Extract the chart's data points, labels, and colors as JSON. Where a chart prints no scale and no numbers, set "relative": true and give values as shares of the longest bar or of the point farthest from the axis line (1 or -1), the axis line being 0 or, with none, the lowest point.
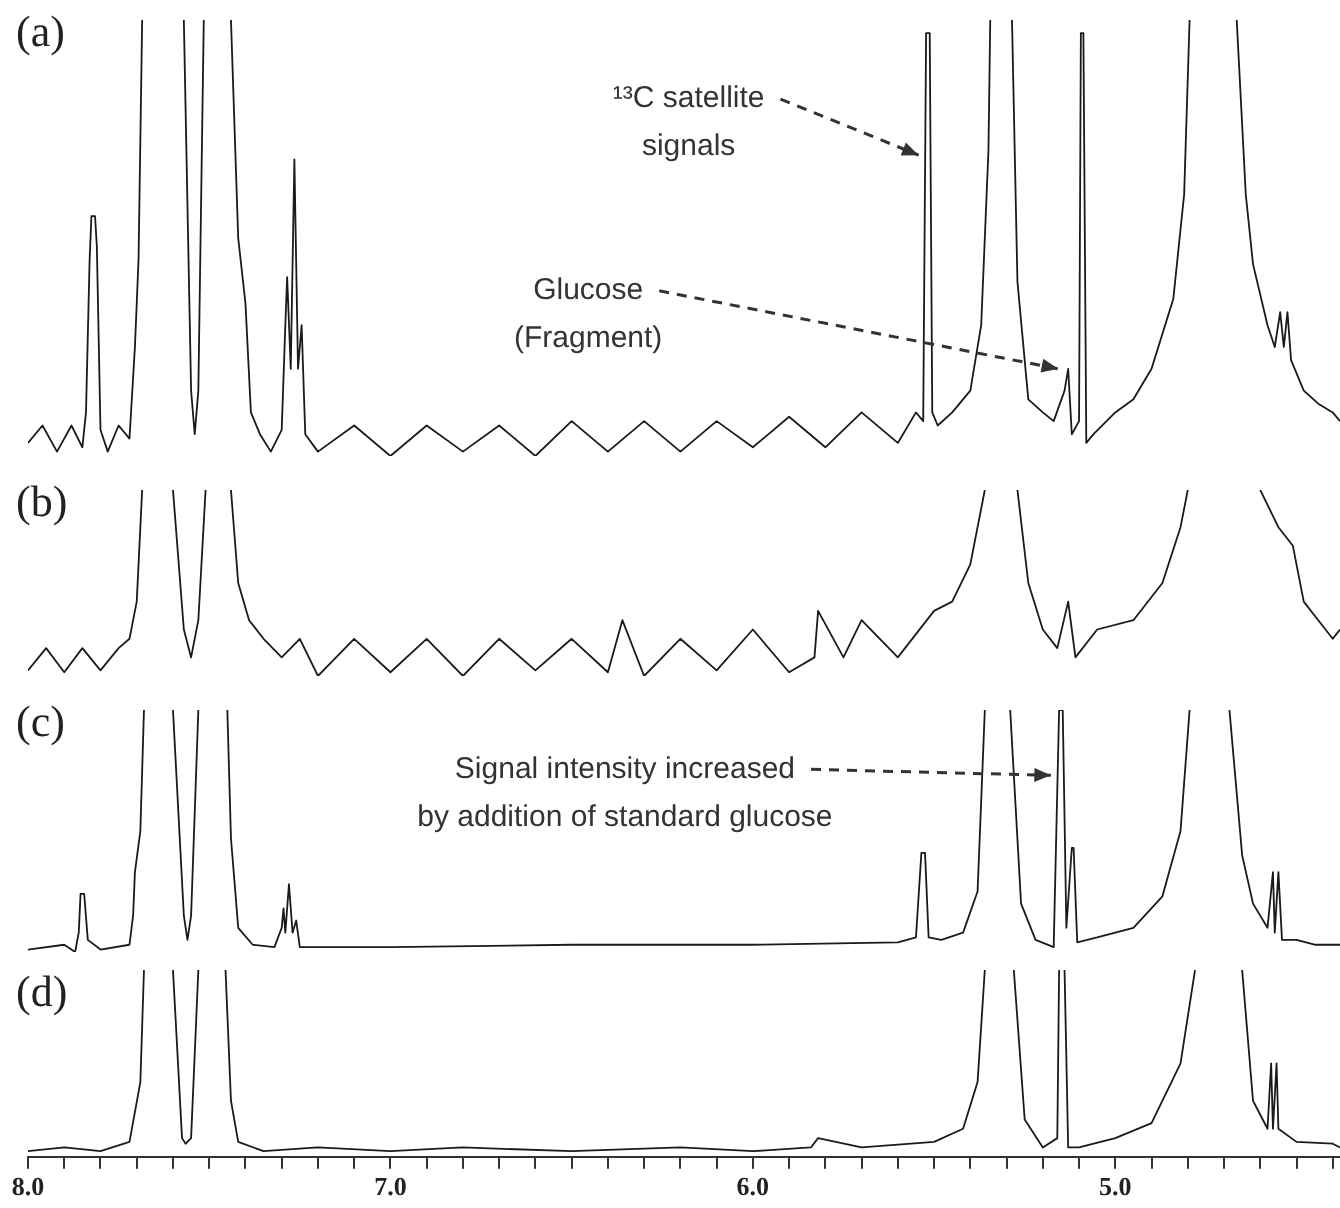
{
  "chart_data": [
    {
      "type": "line",
      "title": "(a)",
      "relative": true,
      "xlim": [
        8.0,
        4.38
      ],
      "tick_labels": false,
      "annotations": [
        {
          "text": "¹³C satellite signals",
          "x": 5.515,
          "y": 0.69
        },
        {
          "text": "Glucose (Fragment)",
          "x": 5.13,
          "y": 0.2
        }
      ],
      "series": [
        {
          "color": "#1a1a1a",
          "x": [
            8.0,
            7.96,
            7.92,
            7.88,
            7.85,
            7.84,
            7.83,
            7.825,
            7.815,
            7.81,
            7.8,
            7.78,
            7.75,
            7.72,
            7.705,
            7.695,
            7.685,
            7.63,
            7.57,
            7.55,
            7.54,
            7.53,
            7.515,
            7.48,
            7.44,
            7.42,
            7.4,
            7.385,
            7.36,
            7.33,
            7.3,
            7.29,
            7.285,
            7.275,
            7.265,
            7.255,
            7.245,
            7.235,
            7.2,
            7.1,
            7.0,
            6.9,
            6.8,
            6.7,
            6.6,
            6.5,
            6.4,
            6.3,
            6.2,
            6.1,
            6.0,
            5.9,
            5.8,
            5.7,
            5.6,
            5.55,
            5.53,
            5.522,
            5.512,
            5.505,
            5.49,
            5.45,
            5.4,
            5.37,
            5.35,
            5.345,
            5.315,
            5.285,
            5.27,
            5.24,
            5.2,
            5.17,
            5.14,
            5.13,
            5.12,
            5.1,
            5.095,
            5.088,
            5.08,
            5.06,
            5.0,
            4.95,
            4.9,
            4.84,
            4.81,
            4.795,
            4.73,
            4.665,
            4.64,
            4.62,
            4.58,
            4.56,
            4.545,
            4.535,
            4.525,
            4.515,
            4.48,
            4.44,
            4.4,
            4.38
          ],
          "values": [
            0.03,
            0.07,
            0.01,
            0.07,
            0.02,
            0.1,
            0.45,
            0.55,
            0.55,
            0.48,
            0.06,
            0.01,
            0.07,
            0.04,
            0.25,
            0.45,
            1,
            null,
            1,
            0.15,
            0.05,
            0.15,
            1,
            null,
            1,
            0.5,
            0.35,
            0.1,
            0.05,
            0.01,
            0.06,
            0.3,
            0.41,
            0.2,
            0.68,
            0.2,
            0.3,
            0.05,
            0.01,
            0.07,
            0,
            0.07,
            0.01,
            0.07,
            0,
            0.08,
            0.01,
            0.08,
            0.01,
            0.08,
            0.02,
            0.09,
            0.02,
            0.1,
            0.03,
            0.1,
            0.08,
            0.97,
            0.97,
            0.1,
            0.07,
            0.1,
            0.15,
            0.3,
            0.7,
            1,
            null,
            1,
            0.4,
            0.13,
            0.1,
            0.08,
            0.15,
            0.2,
            0.05,
            0.08,
            0.97,
            0.97,
            0.03,
            0.05,
            0.1,
            0.13,
            0.2,
            0.36,
            0.6,
            1,
            null,
            1,
            0.6,
            0.44,
            0.3,
            0.25,
            0.33,
            0.25,
            0.33,
            0.22,
            0.15,
            0.12,
            0.1,
            0.08
          ]
        }
      ]
    },
    {
      "type": "line",
      "title": "(b)",
      "relative": true,
      "xlim": [
        8.0,
        4.38
      ],
      "tick_labels": false,
      "series": [
        {
          "color": "#1a1a1a",
          "x": [
            8.0,
            7.95,
            7.9,
            7.85,
            7.8,
            7.75,
            7.72,
            7.7,
            7.685,
            7.64,
            7.6,
            7.57,
            7.55,
            7.53,
            7.51,
            7.47,
            7.44,
            7.42,
            7.39,
            7.35,
            7.3,
            7.25,
            7.2,
            7.1,
            7.0,
            6.9,
            6.8,
            6.7,
            6.6,
            6.5,
            6.4,
            6.36,
            6.3,
            6.2,
            6.1,
            6.0,
            5.9,
            5.83,
            5.82,
            5.75,
            5.7,
            5.6,
            5.5,
            5.45,
            5.4,
            5.36,
            5.315,
            5.27,
            5.24,
            5.2,
            5.16,
            5.13,
            5.11,
            5.05,
            4.95,
            4.87,
            4.82,
            4.8,
            4.7,
            4.6,
            4.55,
            4.51,
            4.48,
            4.44,
            4.4,
            4.38
          ],
          "values": [
            0.03,
            0.15,
            0.02,
            0.15,
            0.03,
            0.15,
            0.2,
            0.4,
            1,
            null,
            1,
            0.25,
            0.1,
            0.3,
            1,
            null,
            1,
            0.5,
            0.3,
            0.2,
            0.1,
            0.2,
            0,
            0.2,
            0.02,
            0.2,
            0,
            0.2,
            0.03,
            0.2,
            0.02,
            0.3,
            0,
            0.2,
            0.03,
            0.25,
            0.02,
            0.1,
            0.35,
            0.1,
            0.3,
            0.1,
            0.35,
            0.4,
            0.6,
            1,
            null,
            1,
            0.5,
            0.25,
            0.15,
            0.4,
            0.1,
            0.25,
            0.3,
            0.5,
            0.8,
            1,
            null,
            1,
            0.8,
            0.7,
            0.4,
            0.3,
            0.2,
            0.25
          ]
        }
      ]
    },
    {
      "type": "line",
      "title": "(c)",
      "relative": true,
      "xlim": [
        8.0,
        4.38
      ],
      "tick_labels": false,
      "annotations": [
        {
          "text": "Signal intensity increased by addition of standard glucose",
          "x": 5.15,
          "y": 0.73
        }
      ],
      "series": [
        {
          "color": "#1a1a1a",
          "x": [
            8.0,
            7.9,
            7.87,
            7.86,
            7.855,
            7.845,
            7.835,
            7.8,
            7.72,
            7.71,
            7.705,
            7.69,
            7.68,
            7.64,
            7.6,
            7.57,
            7.56,
            7.55,
            7.53,
            7.49,
            7.45,
            7.44,
            7.42,
            7.38,
            7.32,
            7.3,
            7.295,
            7.29,
            7.28,
            7.27,
            7.26,
            7.25,
            7.0,
            6.5,
            6.0,
            5.6,
            5.55,
            5.535,
            5.525,
            5.515,
            5.48,
            5.42,
            5.38,
            5.36,
            5.325,
            5.29,
            5.26,
            5.22,
            5.17,
            5.155,
            5.145,
            5.135,
            5.12,
            5.115,
            5.105,
            5.05,
            4.95,
            4.87,
            4.82,
            4.795,
            4.74,
            4.685,
            4.65,
            4.62,
            4.58,
            4.565,
            4.56,
            4.55,
            4.54,
            4.5,
            4.45,
            4.38
          ],
          "values": [
            0.01,
            0.03,
            0,
            0.08,
            0.24,
            0.24,
            0.05,
            0.01,
            0.03,
            0.15,
            0.33,
            0.5,
            1,
            null,
            1,
            0.15,
            0.05,
            0.15,
            1,
            null,
            1,
            0.47,
            0.1,
            0.03,
            0.02,
            0.1,
            0.18,
            0.08,
            0.28,
            0.08,
            0.13,
            0.02,
            0.02,
            0.03,
            0.03,
            0.04,
            0.06,
            0.41,
            0.41,
            0.06,
            0.05,
            0.08,
            0.25,
            1,
            null,
            1,
            0.2,
            0.05,
            0.02,
            1,
            1,
            0.1,
            0.43,
            0.43,
            0.04,
            0.06,
            0.1,
            0.23,
            0.5,
            1,
            null,
            1,
            0.4,
            0.2,
            0.1,
            0.33,
            0.08,
            0.33,
            0.05,
            0.05,
            0.03,
            0.03
          ]
        }
      ]
    },
    {
      "type": "line",
      "title": "(d)",
      "relative": true,
      "xlim": [
        8.0,
        4.38
      ],
      "tick_labels": "x",
      "xticks": [
        {
          "value": 8.0,
          "label": "8.0"
        },
        {
          "value": 7.9,
          "label": null
        },
        {
          "value": 7.8,
          "label": null
        },
        {
          "value": 7.7,
          "label": null
        },
        {
          "value": 7.6,
          "label": null
        },
        {
          "value": 7.5,
          "label": null
        },
        {
          "value": 7.4,
          "label": null
        },
        {
          "value": 7.3,
          "label": null
        },
        {
          "value": 7.2,
          "label": null
        },
        {
          "value": 7.1,
          "label": null
        },
        {
          "value": 7.0,
          "label": "7.0"
        },
        {
          "value": 6.9,
          "label": null
        },
        {
          "value": 6.8,
          "label": null
        },
        {
          "value": 6.7,
          "label": null
        },
        {
          "value": 6.6,
          "label": null
        },
        {
          "value": 6.5,
          "label": null
        },
        {
          "value": 6.4,
          "label": null
        },
        {
          "value": 6.3,
          "label": null
        },
        {
          "value": 6.2,
          "label": null
        },
        {
          "value": 6.1,
          "label": null
        },
        {
          "value": 6.0,
          "label": "6.0"
        },
        {
          "value": 5.9,
          "label": null
        },
        {
          "value": 5.8,
          "label": null
        },
        {
          "value": 5.7,
          "label": null
        },
        {
          "value": 5.6,
          "label": null
        },
        {
          "value": 5.5,
          "label": null
        },
        {
          "value": 5.4,
          "label": null
        },
        {
          "value": 5.3,
          "label": null
        },
        {
          "value": 5.2,
          "label": null
        },
        {
          "value": 5.1,
          "label": null
        },
        {
          "value": 5.0,
          "label": "5.0"
        },
        {
          "value": 4.9,
          "label": null
        },
        {
          "value": 4.8,
          "label": null
        },
        {
          "value": 4.7,
          "label": null
        },
        {
          "value": 4.6,
          "label": null
        },
        {
          "value": 4.5,
          "label": null
        },
        {
          "value": 4.4,
          "label": null
        }
      ],
      "series": [
        {
          "color": "#1a1a1a",
          "x": [
            8.0,
            7.9,
            7.8,
            7.72,
            7.69,
            7.68,
            7.64,
            7.6,
            7.575,
            7.565,
            7.55,
            7.53,
            7.49,
            7.455,
            7.44,
            7.42,
            7.35,
            7.2,
            7.0,
            6.8,
            6.5,
            6.2,
            6.0,
            5.84,
            5.82,
            5.7,
            5.5,
            5.42,
            5.38,
            5.36,
            5.32,
            5.28,
            5.25,
            5.2,
            5.16,
            5.155,
            5.148,
            5.14,
            5.13,
            5.1,
            5.0,
            4.9,
            4.82,
            4.78,
            4.715,
            4.65,
            4.62,
            4.58,
            4.57,
            4.565,
            4.555,
            4.55,
            4.5,
            4.4,
            4.38
          ],
          "values": [
            0.03,
            0.05,
            0.03,
            0.08,
            0.4,
            1,
            null,
            1,
            0.1,
            0.07,
            0.1,
            1,
            null,
            1,
            0.3,
            0.08,
            0.03,
            0.05,
            0.03,
            0.05,
            0.03,
            0.05,
            0.03,
            0.05,
            0.1,
            0.05,
            0.08,
            0.15,
            0.4,
            1,
            null,
            1,
            0.2,
            0.05,
            0.1,
            1,
            null,
            1,
            0.05,
            0.05,
            0.1,
            0.18,
            0.5,
            1,
            null,
            1,
            0.3,
            0.15,
            0.5,
            0.15,
            0.5,
            0.15,
            0.08,
            0.07,
            0.05
          ]
        }
      ]
    }
  ]
}
